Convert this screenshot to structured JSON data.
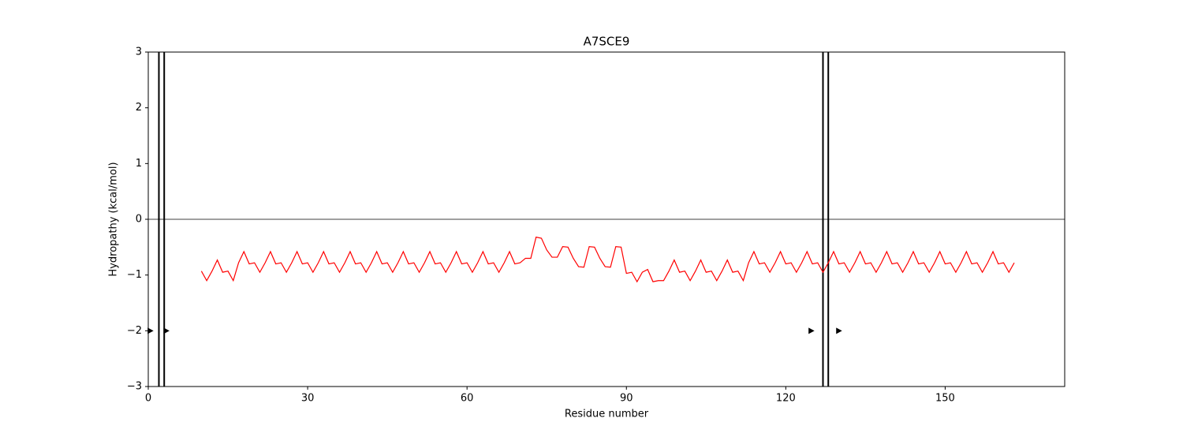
{
  "chart_data": {
    "type": "line",
    "title": "A7SCE9",
    "xlabel": "Residue number",
    "ylabel": "Hydropathy (kcal/mol)",
    "x": [
      10,
      11,
      12,
      13,
      14,
      15,
      16,
      17,
      18,
      19,
      20,
      21,
      22,
      23,
      24,
      25,
      26,
      27,
      28,
      29,
      30,
      31,
      32,
      33,
      34,
      35,
      36,
      37,
      38,
      39,
      40,
      41,
      42,
      43,
      44,
      45,
      46,
      47,
      48,
      49,
      50,
      51,
      52,
      53,
      54,
      55,
      56,
      57,
      58,
      59,
      60,
      61,
      62,
      63,
      64,
      65,
      66,
      67,
      68,
      69,
      70,
      71,
      72,
      73,
      74,
      75,
      76,
      77,
      78,
      79,
      80,
      81,
      82,
      83,
      84,
      85,
      86,
      87,
      88,
      89,
      90,
      91,
      92,
      93,
      94,
      95,
      96,
      97,
      98,
      99,
      100,
      101,
      102,
      103,
      104,
      105,
      106,
      107,
      108,
      109,
      110,
      111,
      112,
      113,
      114,
      115,
      116,
      117,
      118,
      119,
      120,
      121,
      122,
      123,
      124,
      125,
      126,
      127,
      128,
      129,
      130,
      131,
      132,
      133,
      134,
      135,
      136,
      137,
      138,
      139,
      140,
      141,
      142,
      143,
      144,
      145,
      146,
      147,
      148,
      149,
      150,
      151,
      152,
      153,
      154,
      155,
      156,
      157,
      158,
      159,
      160,
      161,
      162,
      163
    ],
    "series": [
      {
        "color": "#ff0000",
        "values": [
          -0.93,
          -1.1,
          -0.93,
          -0.73,
          -0.95,
          -0.93,
          -1.1,
          -0.78,
          -0.58,
          -0.8,
          -0.78,
          -0.95,
          -0.78,
          -0.58,
          -0.8,
          -0.78,
          -0.95,
          -0.78,
          -0.58,
          -0.8,
          -0.78,
          -0.95,
          -0.78,
          -0.58,
          -0.8,
          -0.78,
          -0.95,
          -0.78,
          -0.58,
          -0.8,
          -0.78,
          -0.95,
          -0.78,
          -0.58,
          -0.8,
          -0.78,
          -0.95,
          -0.78,
          -0.58,
          -0.8,
          -0.78,
          -0.95,
          -0.78,
          -0.58,
          -0.8,
          -0.78,
          -0.95,
          -0.78,
          -0.58,
          -0.8,
          -0.78,
          -0.95,
          -0.78,
          -0.58,
          -0.8,
          -0.78,
          -0.95,
          -0.78,
          -0.58,
          -0.8,
          -0.78,
          -0.7,
          -0.7,
          -0.32,
          -0.34,
          -0.55,
          -0.68,
          -0.68,
          -0.49,
          -0.5,
          -0.7,
          -0.85,
          -0.86,
          -0.49,
          -0.5,
          -0.7,
          -0.85,
          -0.86,
          -0.49,
          -0.5,
          -0.97,
          -0.95,
          -1.12,
          -0.95,
          -0.9,
          -1.12,
          -1.1,
          -1.1,
          -0.93,
          -0.73,
          -0.95,
          -0.93,
          -1.1,
          -0.93,
          -0.73,
          -0.95,
          -0.93,
          -1.1,
          -0.93,
          -0.73,
          -0.95,
          -0.93,
          -1.1,
          -0.78,
          -0.58,
          -0.8,
          -0.78,
          -0.95,
          -0.78,
          -0.58,
          -0.8,
          -0.78,
          -0.95,
          -0.78,
          -0.58,
          -0.8,
          -0.78,
          -0.95,
          -0.78,
          -0.58,
          -0.8,
          -0.78,
          -0.95,
          -0.78,
          -0.58,
          -0.8,
          -0.78,
          -0.95,
          -0.78,
          -0.58,
          -0.8,
          -0.78,
          -0.95,
          -0.78,
          -0.58,
          -0.8,
          -0.78,
          -0.95,
          -0.78,
          -0.58,
          -0.8,
          -0.78,
          -0.95,
          -0.78,
          -0.58,
          -0.8,
          -0.78,
          -0.95,
          -0.78,
          -0.58,
          -0.8,
          -0.78,
          -0.95,
          -0.78
        ]
      }
    ],
    "vlines": [
      2,
      3,
      127,
      128
    ],
    "hline": 0,
    "markers": {
      "x": [
        0.4,
        3.4,
        124.8,
        130
      ],
      "y": [
        -2,
        -2,
        -2,
        -2
      ]
    },
    "xlim": [
      0,
      172.5
    ],
    "ylim": [
      -3,
      3
    ],
    "xticks": [
      0,
      30,
      60,
      90,
      120,
      150
    ],
    "yticks": [
      {
        "value": -3,
        "label": "−3"
      },
      {
        "value": -2,
        "label": "−2"
      },
      {
        "value": -1,
        "label": "−1"
      },
      0,
      1,
      2,
      3
    ]
  }
}
